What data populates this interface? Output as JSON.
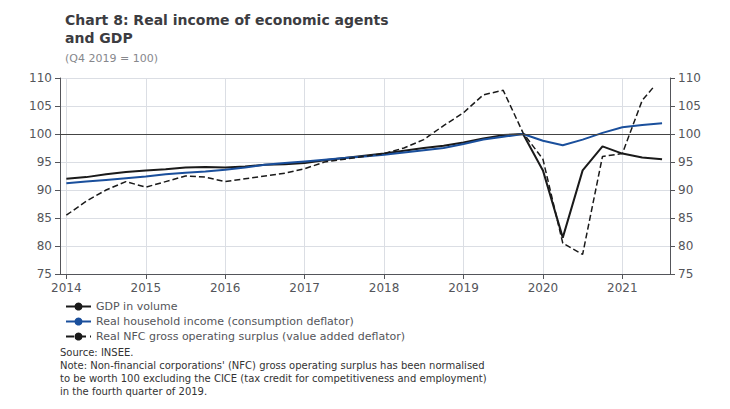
{
  "chart_data": {
    "type": "line",
    "title": "Chart 8: Real income of economic agents\nand GDP",
    "subtitle": "(Q4 2019 = 100)",
    "annotations": [
      "Source: INSEE.",
      "Note: Non-financial corporations' (NFC) gross operating surplus has been normalised",
      "to be worth 100 excluding the CICE (tax credit for competitiveness and employment)",
      "in the fourth quarter of 2019."
    ],
    "xlim": [
      2013.92,
      2021.6
    ],
    "xticks": [
      2014,
      2015,
      2016,
      2017,
      2018,
      2019,
      2020,
      2021
    ],
    "ylim": [
      75,
      110
    ],
    "yticks": [
      75,
      80,
      85,
      90,
      95,
      100,
      105,
      110
    ],
    "y2lim": [
      75,
      110
    ],
    "y2ticks": [
      75,
      80,
      85,
      90,
      95,
      100,
      105,
      110
    ],
    "reference_line": 100,
    "grid": true,
    "legend": "lower left",
    "series": [
      {
        "name": "GDP in volume",
        "color": "#1a1a1a",
        "line_style": "solid",
        "x": [
          2014.0,
          2014.25,
          2014.5,
          2014.75,
          2015.0,
          2015.25,
          2015.5,
          2015.75,
          2016.0,
          2016.25,
          2016.5,
          2016.75,
          2017.0,
          2017.25,
          2017.5,
          2017.75,
          2018.0,
          2018.25,
          2018.5,
          2018.75,
          2019.0,
          2019.25,
          2019.5,
          2019.75,
          2020.0,
          2020.25,
          2020.5,
          2020.75,
          2021.0,
          2021.25,
          2021.5
        ],
        "values": [
          92.0,
          92.3,
          92.8,
          93.2,
          93.5,
          93.7,
          94.0,
          94.1,
          94.0,
          94.2,
          94.5,
          94.6,
          94.8,
          95.3,
          95.7,
          96.1,
          96.5,
          97.0,
          97.5,
          97.9,
          98.5,
          99.2,
          99.8,
          100.0,
          93.5,
          81.5,
          93.5,
          97.8,
          96.5,
          95.8,
          95.5
        ]
      },
      {
        "name": "Real household income (consumption deflator)",
        "color": "#1a4f9c",
        "line_style": "solid",
        "x": [
          2014.0,
          2014.25,
          2014.5,
          2014.75,
          2015.0,
          2015.25,
          2015.5,
          2015.75,
          2016.0,
          2016.25,
          2016.5,
          2016.75,
          2017.0,
          2017.25,
          2017.5,
          2017.75,
          2018.0,
          2018.25,
          2018.5,
          2018.75,
          2019.0,
          2019.25,
          2019.5,
          2019.75,
          2020.0,
          2020.25,
          2020.5,
          2020.75,
          2021.0,
          2021.25,
          2021.5
        ],
        "values": [
          91.2,
          91.5,
          91.8,
          92.1,
          92.4,
          92.8,
          93.1,
          93.3,
          93.6,
          94.0,
          94.5,
          94.8,
          95.1,
          95.4,
          95.7,
          96.0,
          96.3,
          96.7,
          97.1,
          97.5,
          98.2,
          99.0,
          99.5,
          100.0,
          98.8,
          98.0,
          99.0,
          100.2,
          101.2,
          101.6,
          101.9
        ]
      },
      {
        "name": "Real NFC gross operating surplus (value added deflator)",
        "color": "#1a1a1a",
        "line_style": "dashed",
        "x": [
          2014.0,
          2014.25,
          2014.5,
          2014.75,
          2015.0,
          2015.25,
          2015.5,
          2015.75,
          2016.0,
          2016.25,
          2016.5,
          2016.75,
          2017.0,
          2017.25,
          2017.5,
          2017.75,
          2018.0,
          2018.25,
          2018.5,
          2018.75,
          2019.0,
          2019.25,
          2019.5,
          2019.75,
          2020.0,
          2020.25,
          2020.5,
          2020.75,
          2021.0,
          2021.25,
          2021.4
        ],
        "values": [
          85.5,
          88.0,
          90.0,
          91.5,
          90.5,
          91.5,
          92.5,
          92.3,
          91.5,
          92.0,
          92.5,
          93.0,
          93.8,
          95.0,
          95.5,
          96.0,
          96.5,
          97.5,
          99.0,
          101.5,
          103.8,
          107.0,
          107.8,
          100.2,
          95.5,
          80.5,
          78.5,
          96.0,
          96.5,
          106.0,
          108.5
        ]
      }
    ]
  }
}
